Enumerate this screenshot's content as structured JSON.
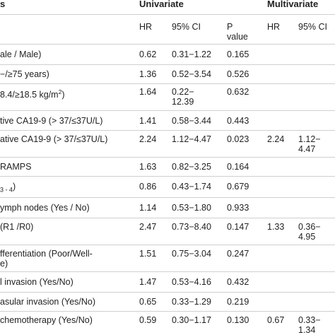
{
  "header": {
    "top_left": "s",
    "univariate": "Univariate",
    "multivariate": "Multivariate",
    "sub": {
      "hr": "HR",
      "ci": "95% CI",
      "p_line1": "P",
      "p_line2": "value",
      "m_hr": "HR",
      "m_ci": "95% CI"
    }
  },
  "rows": [
    {
      "label": "ale / Male)",
      "hr": "0.62",
      "ci": "0.31−1.22",
      "p": "0.165",
      "mhr": "",
      "mci1": "",
      "mci2": ""
    },
    {
      "label": "−/≥75 years)",
      "hr": "1.36",
      "ci": "0.52−3.54",
      "p": "0.526",
      "mhr": "",
      "mci1": "",
      "mci2": ""
    },
    {
      "label": "8.4/≥18.5 kg/m",
      "label_sup": "2",
      "label_tail": ")",
      "hr": "1.64",
      "ci1": "0.22−",
      "ci2": "12.39",
      "p": "0.632",
      "mhr": "",
      "mci1": "",
      "mci2": ""
    },
    {
      "label": "tive CA19-9 (> 37/≤37U/L)",
      "hr": "1.41",
      "ci": "0.58−3.44",
      "p": "0.443",
      "mhr": "",
      "mci1": "",
      "mci2": ""
    },
    {
      "label": "ative CA19-9 (> 37/≤37U/L)",
      "hr": "2.24",
      "ci": "1.12−4.47",
      "p": "0.023",
      "mhr": "2.24",
      "mci1": "1.12−",
      "mci2": "4.47"
    },
    {
      "label": "RAMPS",
      "hr": "1.63",
      "ci": "0.82−3.25",
      "p": "0.164",
      "mhr": "",
      "mci1": "",
      "mci2": ""
    },
    {
      "label": "",
      "label_sub": "3 - 4",
      "label_tail": ")",
      "hr": "0.86",
      "ci": "0.43−1.74",
      "p": "0.679",
      "mhr": "",
      "mci1": "",
      "mci2": ""
    },
    {
      "label": "ymph nodes (Yes / No)",
      "hr": "1.14",
      "ci": "0.53−1.80",
      "p": "0.933",
      "mhr": "",
      "mci1": "",
      "mci2": ""
    },
    {
      "label": "(R1 /R0)",
      "hr": "2.47",
      "ci": "0.73−8.40",
      "p": "0.147",
      "mhr": "1.33",
      "mci1": "0.36−",
      "mci2": "4.95"
    },
    {
      "label1": "fferentiation (Poor/Well-",
      "label2": "e)",
      "hr": "1.51",
      "ci": "0.75−3.04",
      "p": "0.247",
      "mhr": "",
      "mci1": "",
      "mci2": ""
    },
    {
      "label": "l invasion (Yes/No)",
      "hr": "1.47",
      "ci": "0.53−4.16",
      "p": "0.432",
      "mhr": "",
      "mci1": "",
      "mci2": ""
    },
    {
      "label": "asular invasion (Yes/No)",
      "hr": "0.65",
      "ci": "0.33−1.29",
      "p": "0.219",
      "mhr": "",
      "mci1": "",
      "mci2": ""
    },
    {
      "label": "chemotherapy (Yes/No)",
      "hr": "0.59",
      "ci": "0.30−1.17",
      "p": "0.130",
      "mhr": "0.67",
      "mci1": "0.33−",
      "mci2": "1.34"
    }
  ]
}
